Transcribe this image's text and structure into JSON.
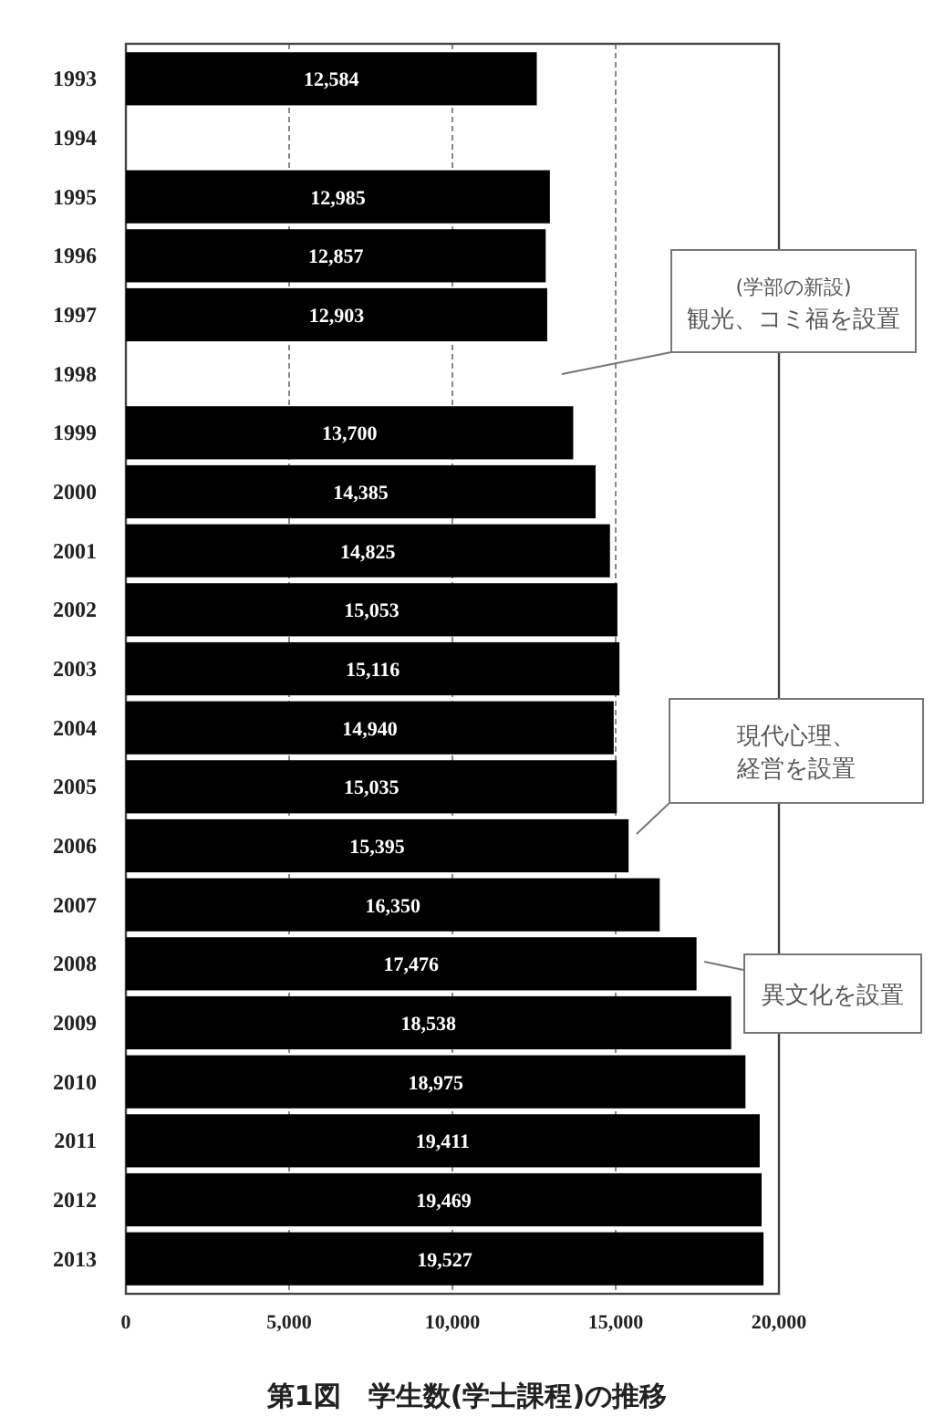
{
  "chart_data": {
    "type": "bar",
    "orientation": "horizontal",
    "title": "第1図　学生数(学士課程)の推移",
    "categories": [
      "1993",
      "1994",
      "1995",
      "1996",
      "1997",
      "1998",
      "1999",
      "2000",
      "2001",
      "2002",
      "2003",
      "2004",
      "2005",
      "2006",
      "2007",
      "2008",
      "2009",
      "2010",
      "2011",
      "2012",
      "2013"
    ],
    "values": [
      12584,
      null,
      12985,
      12857,
      12903,
      null,
      13700,
      14385,
      14825,
      15053,
      15116,
      14940,
      15035,
      15395,
      16350,
      17476,
      18538,
      18975,
      19411,
      19469,
      19527
    ],
    "value_labels": [
      "12,584",
      null,
      "12,985",
      "12,857",
      "12,903",
      null,
      "13,700",
      "14,385",
      "14,825",
      "15,053",
      "15,116",
      "14,940",
      "15,035",
      "15,395",
      "16,350",
      "17,476",
      "18,538",
      "18,975",
      "19,411",
      "19,469",
      "19,527"
    ],
    "color": "#000000",
    "xlim": [
      0,
      20000
    ],
    "xticks": [
      0,
      {
        "value": 5000,
        "label": "5,000"
      },
      {
        "value": 10000,
        "label": "10,000"
      },
      {
        "value": 15000,
        "label": "15,000"
      },
      {
        "value": 20000,
        "label": "20,000"
      }
    ],
    "grid": "x",
    "annotations": [
      "(学部の新設)",
      "観光、コミ福を設置",
      "現代心理、経営を設置",
      "異文化を設置"
    ]
  }
}
